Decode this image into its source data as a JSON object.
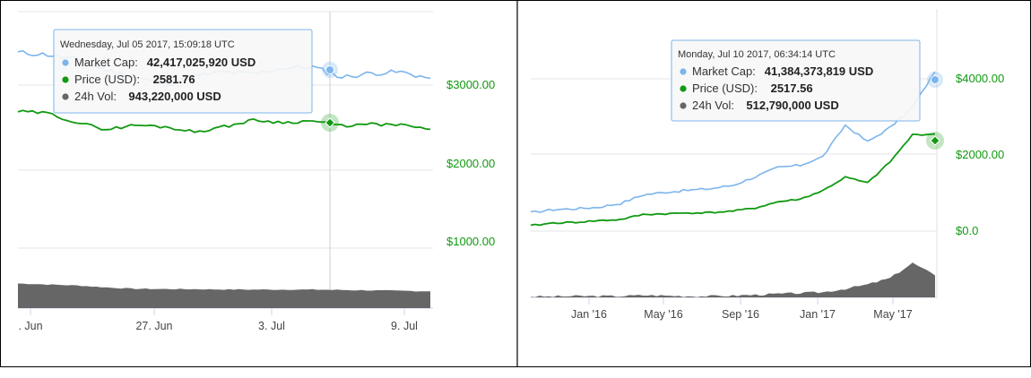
{
  "colors": {
    "market_cap": "#7cb5ec",
    "price": "#119911",
    "volume": "#666666",
    "price_axis_text": "#119911",
    "gridline": "#e6e6e6",
    "tooltip_border": "#7cb5ec"
  },
  "chart_data": [
    {
      "type": "line",
      "panel": "left",
      "x_tick_labels": [
        ". Jun",
        "27. Jun",
        "3. Jul",
        "9. Jul"
      ],
      "y_tick_labels": [
        "$3000.00",
        "$2000.00",
        "$1000.00"
      ],
      "series": [
        {
          "name": "Market Cap",
          "unit": "USD",
          "values": [
            44.9,
            44.7,
            44.2,
            43.2,
            42.5,
            41.8,
            42.6,
            43.0,
            42.8,
            43.4,
            43.5,
            42.5,
            42.9,
            43.0,
            42.4
          ]
        },
        {
          "name": "Price (USD)",
          "unit": "USD",
          "values": [
            2690,
            2670,
            2560,
            2480,
            2530,
            2510,
            2450,
            2510,
            2590,
            2560,
            2580,
            2520,
            2540,
            2530,
            2480
          ]
        },
        {
          "name": "24h Vol",
          "unit": "USD",
          "values": [
            1.25,
            1.2,
            1.15,
            1.05,
            0.98,
            0.97,
            0.96,
            0.95,
            0.94,
            0.94,
            0.94,
            0.92,
            0.9,
            0.88,
            0.85
          ]
        }
      ],
      "tooltip": {
        "date": "Wednesday, Jul 05 2017, 15:09:18 UTC",
        "rows": [
          {
            "label": "Market Cap:",
            "value": "42,417,025,920 USD",
            "color_key": "market_cap"
          },
          {
            "label": "Price (USD):",
            "value": "2581.76",
            "color_key": "price"
          },
          {
            "label": "24h Vol:",
            "value": "943,220,000 USD",
            "color_key": "volume"
          }
        ]
      }
    },
    {
      "type": "line",
      "panel": "right",
      "x_tick_labels": [
        "Jan '16",
        "May '16",
        "Sep '16",
        "Jan '17",
        "May '17"
      ],
      "y_tick_labels": [
        "$4000.00",
        "$2000.00",
        "$0.0"
      ],
      "y_axis_title": "Price (USD)",
      "series": [
        {
          "name": "Market Cap",
          "unit": "USD",
          "values": [
            4.8,
            5.6,
            5.8,
            6.2,
            7.2,
            9.4,
            10.1,
            10.6,
            11.0,
            11.9,
            14.1,
            16.5,
            17.1,
            19.3,
            27.5,
            23.2,
            26.9,
            32.2,
            41.4
          ]
        },
        {
          "name": "Price (USD)",
          "unit": "USD",
          "values": [
            140,
            210,
            230,
            270,
            300,
            430,
            450,
            470,
            480,
            520,
            600,
            760,
            830,
            1050,
            1400,
            1250,
            1800,
            2500,
            2517.56
          ]
        },
        {
          "name": "24h Vol",
          "unit": "USD",
          "values": [
            0.02,
            0.02,
            0.03,
            0.03,
            0.03,
            0.05,
            0.04,
            0.03,
            0.03,
            0.04,
            0.06,
            0.08,
            0.1,
            0.12,
            0.2,
            0.3,
            0.45,
            0.8,
            0.51
          ]
        }
      ],
      "tooltip": {
        "date": "Monday, Jul 10 2017, 06:34:14 UTC",
        "rows": [
          {
            "label": "Market Cap:",
            "value": "41,384,373,819 USD",
            "color_key": "market_cap"
          },
          {
            "label": "Price (USD):",
            "value": "2517.56",
            "color_key": "price"
          },
          {
            "label": "24h Vol:",
            "value": "512,790,000 USD",
            "color_key": "volume"
          }
        ]
      }
    }
  ]
}
